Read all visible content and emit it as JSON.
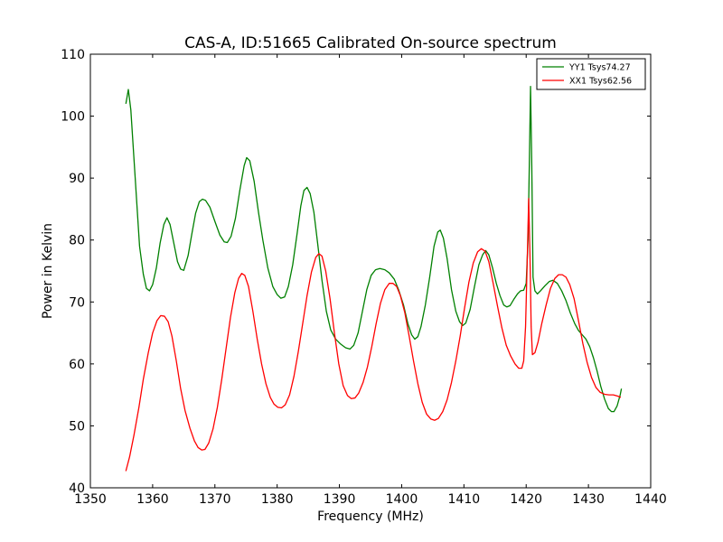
{
  "chart_data": {
    "type": "line",
    "title": "CAS-A, ID:51665 Calibrated On-source spectrum",
    "xlabel": "Frequency (MHz)",
    "ylabel": "Power in Kelvin",
    "xlim": [
      1350,
      1440
    ],
    "ylim": [
      40,
      110
    ],
    "xticks": [
      1350,
      1360,
      1370,
      1380,
      1390,
      1400,
      1410,
      1420,
      1430,
      1440
    ],
    "yticks": [
      40,
      50,
      60,
      70,
      80,
      90,
      100,
      110
    ],
    "grid": false,
    "legend_position": "top-right",
    "series": [
      {
        "name": "YY1 Tsys74.27",
        "color": "#008000",
        "points": [
          [
            1355.7,
            102
          ],
          [
            1356.1,
            104.3
          ],
          [
            1356.5,
            101
          ],
          [
            1357.2,
            90
          ],
          [
            1357.9,
            79
          ],
          [
            1358.5,
            74.5
          ],
          [
            1359,
            72.2
          ],
          [
            1359.5,
            71.8
          ],
          [
            1360,
            72.8
          ],
          [
            1360.6,
            75.5
          ],
          [
            1361.2,
            79.5
          ],
          [
            1361.8,
            82.5
          ],
          [
            1362.3,
            83.6
          ],
          [
            1362.8,
            82.5
          ],
          [
            1363.4,
            79.5
          ],
          [
            1364,
            76.5
          ],
          [
            1364.5,
            75.3
          ],
          [
            1365,
            75.1
          ],
          [
            1365.7,
            77.5
          ],
          [
            1366.3,
            81
          ],
          [
            1366.9,
            84.3
          ],
          [
            1367.5,
            86.2
          ],
          [
            1368,
            86.6
          ],
          [
            1368.5,
            86.4
          ],
          [
            1369.2,
            85.3
          ],
          [
            1370,
            83
          ],
          [
            1370.8,
            80.8
          ],
          [
            1371.5,
            79.7
          ],
          [
            1372,
            79.6
          ],
          [
            1372.6,
            80.6
          ],
          [
            1373.3,
            83.5
          ],
          [
            1374,
            88
          ],
          [
            1374.7,
            92
          ],
          [
            1375.1,
            93.3
          ],
          [
            1375.6,
            92.8
          ],
          [
            1376.3,
            89.5
          ],
          [
            1377,
            84.5
          ],
          [
            1377.7,
            80
          ],
          [
            1378.5,
            75.5
          ],
          [
            1379.3,
            72.5
          ],
          [
            1380,
            71.2
          ],
          [
            1380.6,
            70.6
          ],
          [
            1381.2,
            70.8
          ],
          [
            1381.8,
            72.5
          ],
          [
            1382.5,
            76
          ],
          [
            1383.2,
            81
          ],
          [
            1383.8,
            85.5
          ],
          [
            1384.3,
            88
          ],
          [
            1384.8,
            88.5
          ],
          [
            1385.3,
            87.5
          ],
          [
            1385.9,
            84.5
          ],
          [
            1386.5,
            79.5
          ],
          [
            1387.2,
            73.5
          ],
          [
            1387.9,
            68.5
          ],
          [
            1388.6,
            65.5
          ],
          [
            1389.4,
            64
          ],
          [
            1390.2,
            63.2
          ],
          [
            1391,
            62.6
          ],
          [
            1391.7,
            62.4
          ],
          [
            1392.3,
            63
          ],
          [
            1393,
            65
          ],
          [
            1393.7,
            68.5
          ],
          [
            1394.4,
            72
          ],
          [
            1395.1,
            74.3
          ],
          [
            1395.8,
            75.2
          ],
          [
            1396.5,
            75.4
          ],
          [
            1397.3,
            75.2
          ],
          [
            1398,
            74.7
          ],
          [
            1398.8,
            73.7
          ],
          [
            1399.5,
            72
          ],
          [
            1400.3,
            69.5
          ],
          [
            1401,
            66.5
          ],
          [
            1401.6,
            64.7
          ],
          [
            1402.1,
            64
          ],
          [
            1402.6,
            64.4
          ],
          [
            1403.1,
            66
          ],
          [
            1403.8,
            69.5
          ],
          [
            1404.5,
            74
          ],
          [
            1405.2,
            79
          ],
          [
            1405.8,
            81.3
          ],
          [
            1406.2,
            81.6
          ],
          [
            1406.7,
            80.3
          ],
          [
            1407.3,
            77
          ],
          [
            1408,
            72
          ],
          [
            1408.7,
            68.5
          ],
          [
            1409.3,
            66.8
          ],
          [
            1409.8,
            66.2
          ],
          [
            1410.3,
            66.6
          ],
          [
            1411,
            68.8
          ],
          [
            1411.7,
            72.5
          ],
          [
            1412.4,
            76
          ],
          [
            1413,
            77.6
          ],
          [
            1413.5,
            78.3
          ],
          [
            1414,
            77.6
          ],
          [
            1414.6,
            75.5
          ],
          [
            1415.2,
            73
          ],
          [
            1415.8,
            71
          ],
          [
            1416.4,
            69.5
          ],
          [
            1416.9,
            69.2
          ],
          [
            1417.4,
            69.4
          ],
          [
            1418,
            70.4
          ],
          [
            1418.6,
            71.3
          ],
          [
            1419.1,
            71.8
          ],
          [
            1419.6,
            71.9
          ],
          [
            1420,
            73
          ],
          [
            1420.3,
            80
          ],
          [
            1420.5,
            92
          ],
          [
            1420.7,
            104.8
          ],
          [
            1420.9,
            92
          ],
          [
            1421.1,
            74
          ],
          [
            1421.4,
            71.8
          ],
          [
            1421.8,
            71.3
          ],
          [
            1422.3,
            71.8
          ],
          [
            1423,
            72.6
          ],
          [
            1423.7,
            73.3
          ],
          [
            1424.3,
            73.5
          ],
          [
            1425,
            73
          ],
          [
            1425.7,
            71.8
          ],
          [
            1426.4,
            70.2
          ],
          [
            1427.1,
            68.2
          ],
          [
            1427.8,
            66.5
          ],
          [
            1428.4,
            65.4
          ],
          [
            1429,
            64.7
          ],
          [
            1429.6,
            64
          ],
          [
            1430.2,
            62.8
          ],
          [
            1430.8,
            61
          ],
          [
            1431.4,
            58.8
          ],
          [
            1432,
            56.3
          ],
          [
            1432.6,
            54.3
          ],
          [
            1433.2,
            52.8
          ],
          [
            1433.7,
            52.3
          ],
          [
            1434.1,
            52.3
          ],
          [
            1434.6,
            53.2
          ],
          [
            1435.1,
            55
          ],
          [
            1435.3,
            56
          ]
        ]
      },
      {
        "name": "XX1 Tsys62.56",
        "color": "#ff0000",
        "points": [
          [
            1355.7,
            42.7
          ],
          [
            1356.3,
            45
          ],
          [
            1357,
            48.5
          ],
          [
            1357.8,
            53
          ],
          [
            1358.5,
            57.5
          ],
          [
            1359.3,
            61.8
          ],
          [
            1360,
            65
          ],
          [
            1360.7,
            67
          ],
          [
            1361.3,
            67.8
          ],
          [
            1361.9,
            67.7
          ],
          [
            1362.5,
            66.8
          ],
          [
            1363.1,
            64.5
          ],
          [
            1363.8,
            60.5
          ],
          [
            1364.5,
            56
          ],
          [
            1365.2,
            52.5
          ],
          [
            1366,
            49.6
          ],
          [
            1366.7,
            47.6
          ],
          [
            1367.3,
            46.5
          ],
          [
            1367.9,
            46.1
          ],
          [
            1368.4,
            46.2
          ],
          [
            1369,
            47.2
          ],
          [
            1369.7,
            49.5
          ],
          [
            1370.4,
            53
          ],
          [
            1371.1,
            57.5
          ],
          [
            1371.8,
            62.5
          ],
          [
            1372.5,
            67.5
          ],
          [
            1373.2,
            71.5
          ],
          [
            1373.8,
            73.8
          ],
          [
            1374.3,
            74.6
          ],
          [
            1374.8,
            74.3
          ],
          [
            1375.4,
            72.5
          ],
          [
            1376.1,
            68.5
          ],
          [
            1376.8,
            64
          ],
          [
            1377.5,
            60
          ],
          [
            1378.2,
            56.8
          ],
          [
            1378.9,
            54.6
          ],
          [
            1379.5,
            53.5
          ],
          [
            1380.1,
            53
          ],
          [
            1380.7,
            52.9
          ],
          [
            1381.3,
            53.4
          ],
          [
            1382,
            55
          ],
          [
            1382.7,
            58
          ],
          [
            1383.4,
            62
          ],
          [
            1384.1,
            66.5
          ],
          [
            1384.8,
            71
          ],
          [
            1385.5,
            74.8
          ],
          [
            1386.2,
            77.2
          ],
          [
            1386.7,
            77.8
          ],
          [
            1387.2,
            77.4
          ],
          [
            1387.8,
            75
          ],
          [
            1388.5,
            70.5
          ],
          [
            1389.2,
            65
          ],
          [
            1389.9,
            60
          ],
          [
            1390.6,
            56.5
          ],
          [
            1391.3,
            54.9
          ],
          [
            1391.9,
            54.4
          ],
          [
            1392.5,
            54.5
          ],
          [
            1393.1,
            55.3
          ],
          [
            1393.8,
            57
          ],
          [
            1394.5,
            59.5
          ],
          [
            1395.2,
            62.8
          ],
          [
            1395.9,
            66.5
          ],
          [
            1396.6,
            69.8
          ],
          [
            1397.3,
            72
          ],
          [
            1398,
            73
          ],
          [
            1398.6,
            73
          ],
          [
            1399.2,
            72.5
          ],
          [
            1399.8,
            71
          ],
          [
            1400.5,
            68.3
          ],
          [
            1401.2,
            64.5
          ],
          [
            1401.9,
            60.5
          ],
          [
            1402.6,
            56.8
          ],
          [
            1403.3,
            53.8
          ],
          [
            1404,
            51.9
          ],
          [
            1404.7,
            51.1
          ],
          [
            1405.3,
            50.9
          ],
          [
            1405.9,
            51.2
          ],
          [
            1406.6,
            52.3
          ],
          [
            1407.3,
            54.2
          ],
          [
            1408,
            57
          ],
          [
            1408.7,
            60.5
          ],
          [
            1409.4,
            64.5
          ],
          [
            1410.1,
            69
          ],
          [
            1410.8,
            73.2
          ],
          [
            1411.5,
            76.3
          ],
          [
            1412.2,
            78.1
          ],
          [
            1412.8,
            78.6
          ],
          [
            1413.4,
            78.2
          ],
          [
            1414,
            76.5
          ],
          [
            1414.7,
            73
          ],
          [
            1415.4,
            69.3
          ],
          [
            1416.1,
            65.8
          ],
          [
            1416.8,
            63
          ],
          [
            1417.5,
            61.3
          ],
          [
            1418.2,
            60
          ],
          [
            1418.8,
            59.3
          ],
          [
            1419.3,
            59.3
          ],
          [
            1419.6,
            60.5
          ],
          [
            1419.9,
            66
          ],
          [
            1420.2,
            78
          ],
          [
            1420.4,
            86.7
          ],
          [
            1420.6,
            78
          ],
          [
            1420.8,
            66
          ],
          [
            1421,
            61.5
          ],
          [
            1421.4,
            61.8
          ],
          [
            1421.9,
            63.5
          ],
          [
            1422.5,
            66.5
          ],
          [
            1423.2,
            69.5
          ],
          [
            1423.9,
            72.2
          ],
          [
            1424.6,
            73.8
          ],
          [
            1425.2,
            74.4
          ],
          [
            1425.8,
            74.4
          ],
          [
            1426.4,
            74
          ],
          [
            1427,
            72.8
          ],
          [
            1427.7,
            70.5
          ],
          [
            1428.4,
            67
          ],
          [
            1429.1,
            63.3
          ],
          [
            1429.8,
            60.2
          ],
          [
            1430.5,
            57.8
          ],
          [
            1431.2,
            56.2
          ],
          [
            1431.9,
            55.4
          ],
          [
            1432.6,
            55.1
          ],
          [
            1433.3,
            55
          ],
          [
            1434,
            55
          ],
          [
            1434.7,
            54.8
          ],
          [
            1435.2,
            54.6
          ]
        ]
      }
    ]
  }
}
